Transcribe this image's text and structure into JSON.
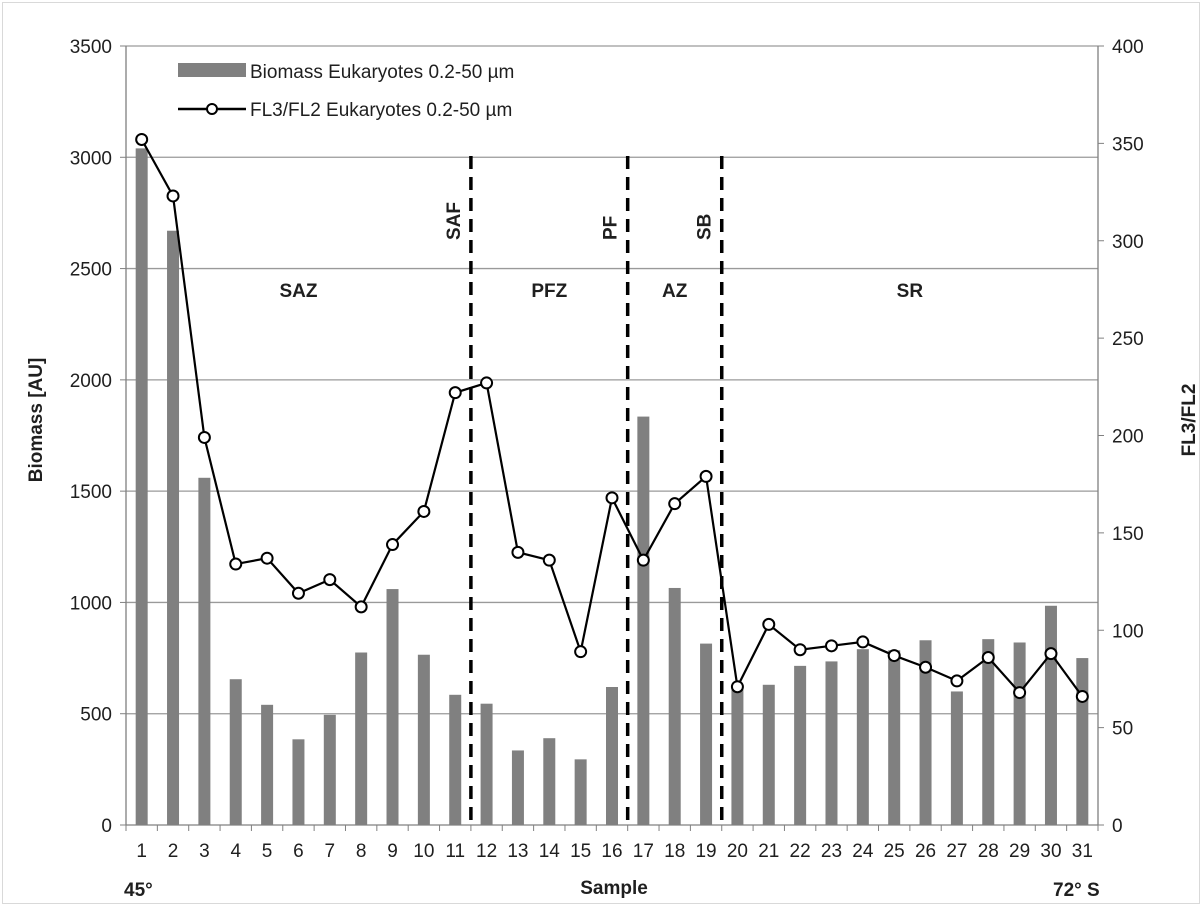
{
  "chart_data": {
    "type": "bar",
    "categories": [
      "1",
      "2",
      "3",
      "4",
      "5",
      "6",
      "7",
      "8",
      "9",
      "10",
      "11",
      "12",
      "13",
      "14",
      "15",
      "16",
      "17",
      "18",
      "19",
      "20",
      "21",
      "22",
      "23",
      "24",
      "25",
      "26",
      "27",
      "28",
      "29",
      "30",
      "31"
    ],
    "series": [
      {
        "name": "Biomass Eukaryotes 0.2-50 µm",
        "type": "bar",
        "axis": "left",
        "color": "#808080",
        "values": [
          3040,
          2670,
          1560,
          655,
          540,
          385,
          495,
          775,
          1060,
          765,
          585,
          545,
          335,
          390,
          295,
          620,
          1835,
          1065,
          815,
          620,
          630,
          715,
          735,
          790,
          785,
          830,
          600,
          835,
          820,
          985,
          750
        ]
      },
      {
        "name": "FL3/FL2 Eukaryotes 0.2-50 µm",
        "type": "line",
        "axis": "right",
        "color": "#000000",
        "marker": "open-circle",
        "values": [
          352,
          323,
          199,
          134,
          137,
          119,
          126,
          112,
          144,
          161,
          222,
          227,
          140,
          136,
          89,
          168,
          136,
          165,
          179,
          71,
          103,
          90,
          92,
          94,
          87,
          81,
          74,
          86,
          68,
          88,
          66
        ]
      }
    ],
    "ylabel": "Biomass [AU]",
    "y2label": "FL3/FL2",
    "xlabel": "Sample",
    "x_start_label": "45°",
    "x_end_label": "72° S",
    "ylim": [
      0,
      3500
    ],
    "y2lim": [
      0,
      400
    ],
    "yticks": [
      "0",
      "500",
      "1000",
      "1500",
      "2000",
      "2500",
      "3000",
      "3500"
    ],
    "y2ticks": [
      "0",
      "50",
      "100",
      "150",
      "200",
      "250",
      "300",
      "350",
      "400"
    ],
    "grid": true,
    "legend_position": "top-left",
    "fronts": [
      {
        "label": "SAF",
        "after_sample": 11
      },
      {
        "label": "PF",
        "after_sample": 16
      },
      {
        "label": "SB",
        "after_sample": 19
      }
    ],
    "zones": [
      {
        "label": "SAZ",
        "from": 1,
        "to": 11
      },
      {
        "label": "PFZ",
        "from": 12,
        "to": 16
      },
      {
        "label": "AZ",
        "from": 17,
        "to": 19
      },
      {
        "label": "SR",
        "from": 20,
        "to": 31
      }
    ]
  }
}
